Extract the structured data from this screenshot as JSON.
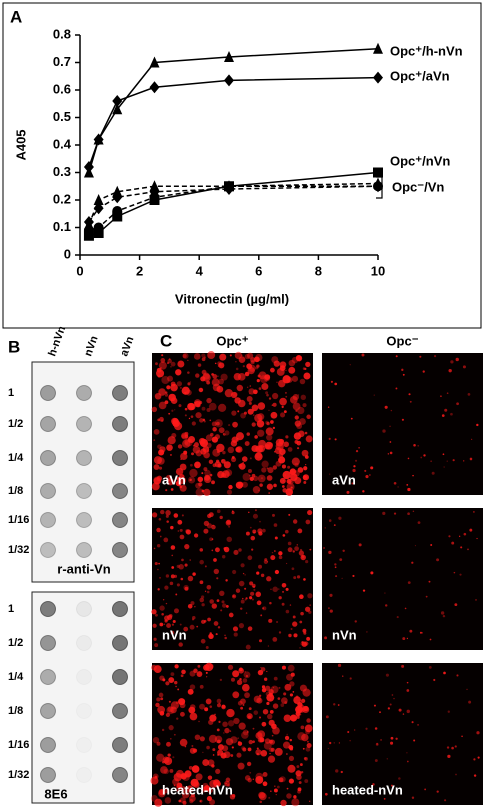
{
  "chart_data": {
    "type": "line",
    "panel_label": "A",
    "xlabel": "Vitronectin (µg/ml)",
    "ylabel": "A405",
    "x": [
      0.3,
      0.625,
      1.25,
      2.5,
      5,
      10
    ],
    "xlim": [
      0,
      10
    ],
    "xticks": [
      0,
      2,
      4,
      6,
      8,
      10
    ],
    "ylim": [
      0,
      0.8
    ],
    "yticks": [
      0,
      0.1,
      0.2,
      0.3,
      0.4,
      0.5,
      0.6,
      0.7,
      0.8
    ],
    "series": [
      {
        "name": "Opc⁺/h-nVn",
        "color": "#000000",
        "marker": "triangle",
        "dashed": false,
        "values": [
          0.3,
          0.42,
          0.53,
          0.7,
          0.72,
          0.75
        ]
      },
      {
        "name": "Opc⁺/aVn",
        "color": "#000000",
        "marker": "diamond",
        "dashed": false,
        "values": [
          0.32,
          0.42,
          0.56,
          0.61,
          0.635,
          0.645
        ]
      },
      {
        "name": "Opc⁺/nVn",
        "color": "#000000",
        "marker": "square",
        "dashed": false,
        "values": [
          0.07,
          0.08,
          0.14,
          0.2,
          0.25,
          0.3
        ]
      },
      {
        "color": "#000000",
        "marker": "triangle",
        "dashed": true,
        "values": [
          0.11,
          0.2,
          0.23,
          0.25,
          0.25,
          0.26
        ]
      },
      {
        "color": "#000000",
        "marker": "diamond",
        "dashed": true,
        "values": [
          0.12,
          0.17,
          0.21,
          0.23,
          0.24,
          0.25
        ]
      },
      {
        "color": "#000000",
        "marker": "circle",
        "dashed": true,
        "values": [
          0.09,
          0.1,
          0.16,
          0.21,
          0.25,
          0.25
        ]
      }
    ],
    "annotation": "Opc⁻/Vn"
  },
  "blot": {
    "label": "B",
    "columns": [
      "h-nVn",
      "nVn",
      "aVn"
    ],
    "rows": [
      "1",
      "1/2",
      "1/4",
      "1/8",
      "1/16",
      "1/32"
    ],
    "blots": [
      "r-anti-Vn",
      "8E6"
    ]
  },
  "images": {
    "label": "C",
    "columns": [
      "Opc⁺",
      "Opc⁻"
    ],
    "rows": [
      "aVn",
      "nVn",
      "heated-nVn"
    ]
  }
}
